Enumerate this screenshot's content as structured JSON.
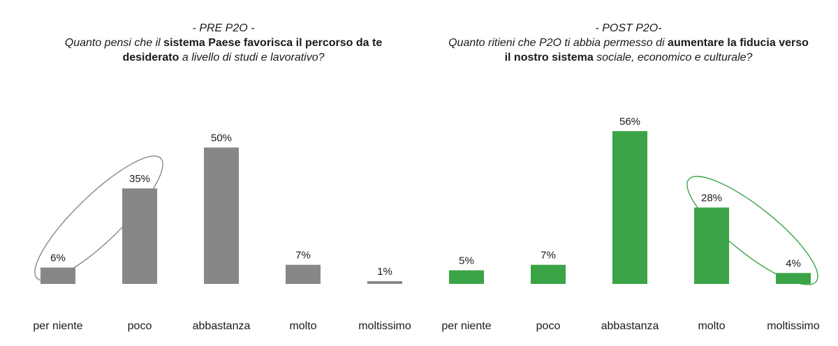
{
  "colors": {
    "pre": "#878787",
    "post": "#3aa447",
    "text": "#1a1a1a"
  },
  "titles": {
    "pre": {
      "tag": "- PRE P2O -",
      "parts": [
        {
          "text": "Quanto pensi che il ",
          "bold": false
        },
        {
          "text": "sistema Paese favorisca il percorso da te desiderato",
          "bold": true
        },
        {
          "text": " a livello di studi e lavorativo?",
          "bold": false
        }
      ]
    },
    "post": {
      "tag": "- POST P2O-",
      "parts": [
        {
          "text": "Quanto ritieni che P2O ti abbia permesso di ",
          "bold": false
        },
        {
          "text": "aumentare la fiducia verso il nostro sistema",
          "bold": true
        },
        {
          "text": " sociale, economico e culturale?",
          "bold": false
        }
      ]
    }
  },
  "chart_data": [
    {
      "type": "bar",
      "title": "- PRE P2O - Quanto pensi che il sistema Paese favorisca il percorso da te desiderato a livello di studi e lavorativo?",
      "categories": [
        "per niente",
        "poco",
        "abbastanza",
        "molto",
        "moltissimo"
      ],
      "values": [
        6,
        35,
        50,
        7,
        1
      ],
      "labels": [
        "6%",
        "35%",
        "50%",
        "7%",
        "1%"
      ],
      "color": "#878787",
      "ylim": [
        0,
        56
      ],
      "grid": false,
      "highlight": [
        "per niente",
        "poco"
      ]
    },
    {
      "type": "bar",
      "title": "- POST P2O- Quanto ritieni che P2O ti abbia permesso di aumentare la fiducia verso il nostro sistema sociale, economico e culturale?",
      "categories": [
        "per niente",
        "poco",
        "abbastanza",
        "molto",
        "moltissimo"
      ],
      "values": [
        5,
        7,
        56,
        28,
        4
      ],
      "labels": [
        "5%",
        "7%",
        "56%",
        "28%",
        "4%"
      ],
      "color": "#3aa447",
      "ylim": [
        0,
        56
      ],
      "grid": false,
      "highlight": [
        "molto",
        "moltissimo"
      ]
    }
  ]
}
